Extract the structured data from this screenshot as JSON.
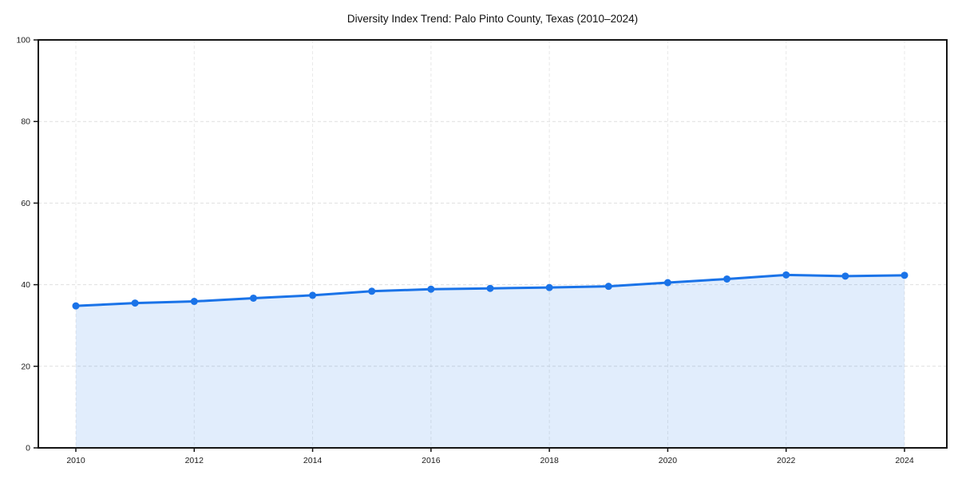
{
  "chart_data": {
    "type": "area",
    "title": "Diversity Index Trend: Palo Pinto County, Texas (2010–2024)",
    "x": [
      2010,
      2011,
      2012,
      2013,
      2014,
      2015,
      2016,
      2017,
      2018,
      2019,
      2020,
      2021,
      2022,
      2023,
      2024
    ],
    "series": [
      {
        "name": "Diversity Index",
        "values": [
          34.8,
          35.5,
          35.9,
          36.7,
          37.4,
          38.4,
          38.9,
          39.1,
          39.3,
          39.6,
          40.5,
          41.4,
          42.4,
          42.1,
          42.3
        ]
      }
    ],
    "xlabel": "",
    "ylabel": "",
    "ylim": [
      0,
      100
    ],
    "yticks": [
      0,
      20,
      40,
      60,
      80,
      100
    ],
    "xticks": [
      2010,
      2012,
      2014,
      2016,
      2018,
      2020,
      2022,
      2024
    ],
    "grid": true,
    "legend": false,
    "colors": {
      "line": "#1a73e8",
      "marker": "#1a73e8",
      "fill": "rgba(26,115,232,0.13)",
      "grid_h": "#dfdfdf",
      "grid_v": "#e8e8e8",
      "spine": "#141414",
      "text": "#1a1a1a"
    }
  }
}
